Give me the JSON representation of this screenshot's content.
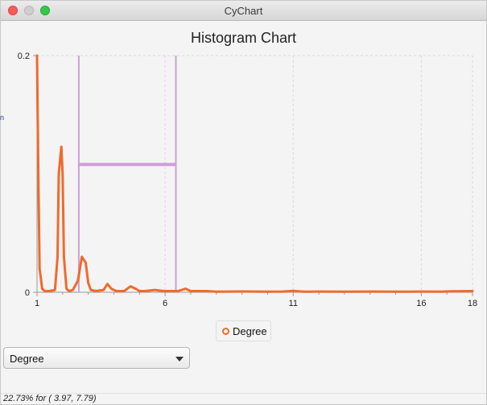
{
  "window": {
    "title": "CyChart"
  },
  "chart_data": {
    "type": "line",
    "title": "Histogram Chart",
    "xlabel": "",
    "ylabel": "",
    "xlim": [
      1,
      18
    ],
    "ylim": [
      0,
      0.2
    ],
    "x_ticks": [
      1,
      6,
      11,
      16,
      18
    ],
    "y_ticks": [
      0,
      0.2
    ],
    "x_tick_labels": [
      "1",
      "6",
      "11",
      "16",
      "18"
    ],
    "y_tick_labels": [
      "0",
      "0.2"
    ],
    "grid": true,
    "legend_placement": "bottom-center",
    "series": [
      {
        "name": "Degree",
        "color": "#f06a2d",
        "x": [
          1.0,
          1.05,
          1.1,
          1.2,
          1.3,
          1.5,
          1.7,
          1.8,
          1.85,
          1.95,
          2.0,
          2.05,
          2.15,
          2.25,
          2.4,
          2.6,
          2.75,
          2.9,
          3.0,
          3.1,
          3.3,
          3.6,
          3.75,
          3.9,
          4.1,
          4.4,
          4.65,
          4.85,
          5.0,
          5.2,
          5.6,
          5.95,
          6.2,
          6.5,
          6.8,
          7.0,
          7.3,
          7.6,
          8.0,
          9.0,
          10.0,
          10.6,
          11.0,
          11.4,
          12.0,
          13.0,
          14.0,
          15.0,
          16.0,
          16.8,
          17.2,
          18.0
        ],
        "values": [
          0.2,
          0.1,
          0.02,
          0.003,
          0.001,
          0.001,
          0.002,
          0.03,
          0.1,
          0.123,
          0.1,
          0.03,
          0.003,
          0.001,
          0.002,
          0.01,
          0.03,
          0.025,
          0.008,
          0.002,
          0.001,
          0.002,
          0.007,
          0.003,
          0.001,
          0.001,
          0.005,
          0.003,
          0.001,
          0.001,
          0.002,
          0.001,
          0.001,
          0.001,
          0.003,
          0.001,
          0.001,
          0.001,
          0.0005,
          0.0007,
          0.0005,
          0.0006,
          0.0012,
          0.0005,
          0.0006,
          0.0005,
          0.0006,
          0.0005,
          0.0006,
          0.0005,
          0.0009,
          0.001
        ]
      }
    ],
    "selection": {
      "x_start": 2.63,
      "x_end": 6.42,
      "y_level": 0.108,
      "color": "#cf9ed8"
    }
  },
  "legend": {
    "entries": [
      {
        "label": "Degree"
      }
    ]
  },
  "dropdown": {
    "selected": "Degree"
  },
  "status": {
    "text": "22.73% for ( 3.97, 7.79)"
  },
  "side_glyph": "n"
}
